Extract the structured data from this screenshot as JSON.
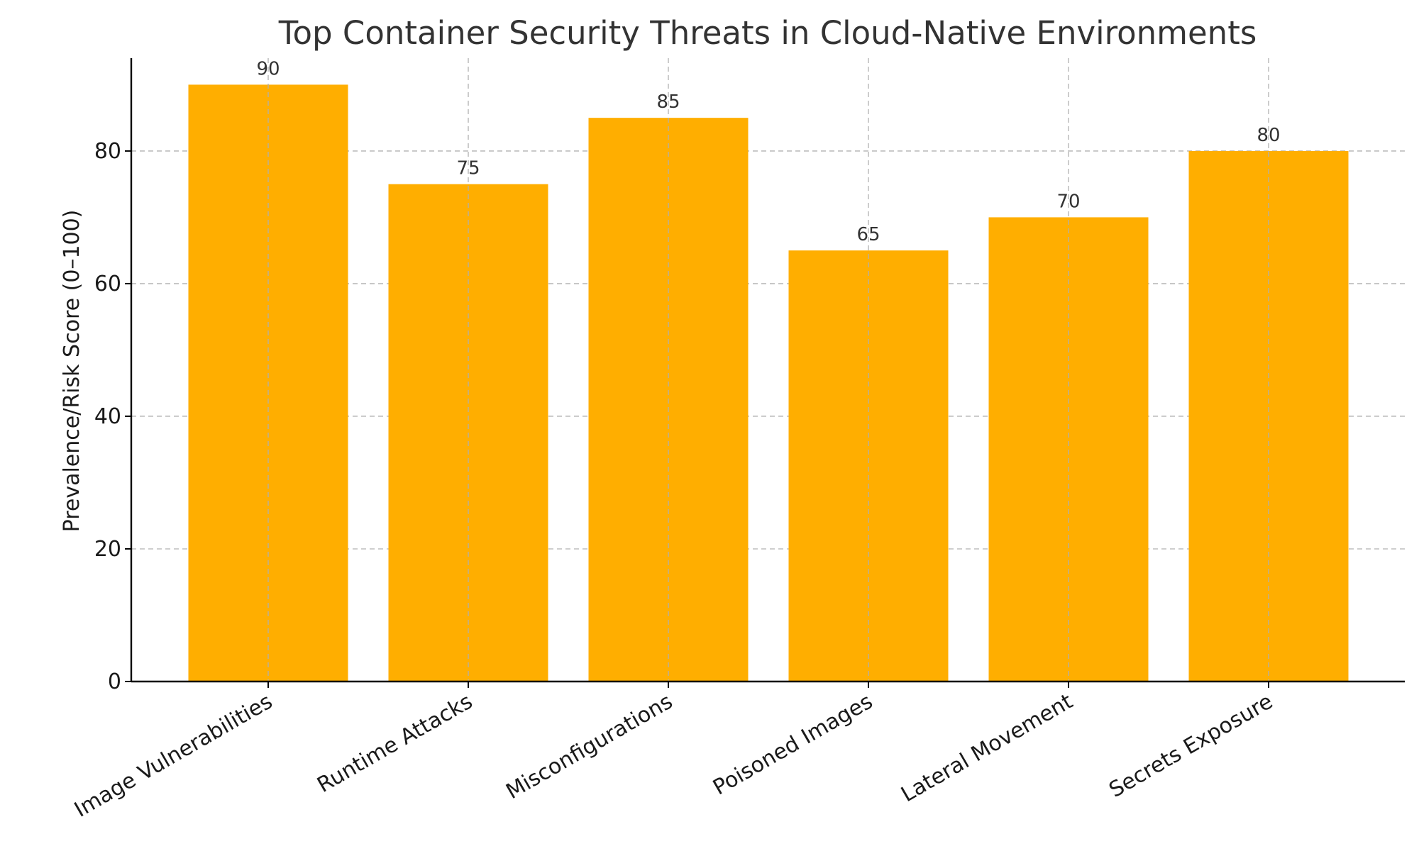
{
  "chart_data": {
    "type": "bar",
    "title": "Top Container Security Threats in Cloud-Native Environments",
    "xlabel": "",
    "ylabel": "Prevalence/Risk Score (0–100)",
    "categories": [
      "Image Vulnerabilities",
      "Runtime Attacks",
      "Misconfigurations",
      "Poisoned Images",
      "Lateral Movement",
      "Secrets Exposure"
    ],
    "values": [
      90,
      75,
      85,
      65,
      70,
      80
    ],
    "data_labels": [
      "90",
      "75",
      "85",
      "65",
      "70",
      "80"
    ],
    "ylim": [
      0,
      94
    ],
    "yticks": [
      0,
      20,
      40,
      60,
      80
    ],
    "ytick_labels": [
      "0",
      "20",
      "40",
      "60",
      "80"
    ],
    "grid": true,
    "legend": "none",
    "bar_color": "#FFAE00"
  }
}
